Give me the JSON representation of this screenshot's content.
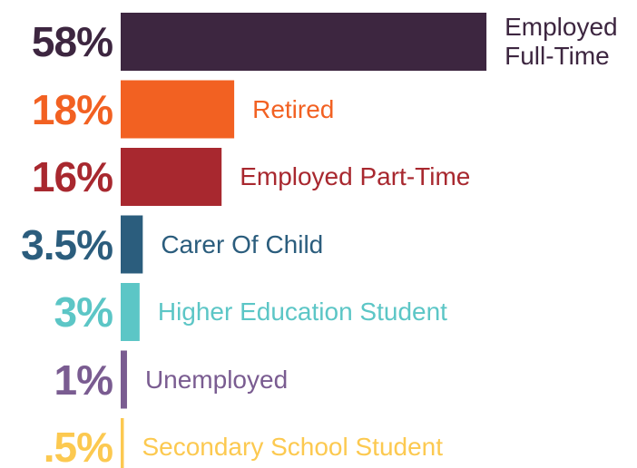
{
  "chart_data": {
    "type": "bar",
    "orientation": "horizontal",
    "categories": [
      "Employed Full-Time",
      "Retired",
      "Employed Part-Time",
      "Carer Of Child",
      "Higher Education Student",
      "Unemployed",
      "Secondary School Student"
    ],
    "values": [
      58,
      18,
      16,
      3.5,
      3,
      1,
      0.5
    ],
    "value_labels": [
      "58%",
      "18%",
      "16%",
      "3.5%",
      "3%",
      "1%",
      ".5%"
    ],
    "colors": [
      "#3d2640",
      "#f26122",
      "#a8282f",
      "#2b5d7d",
      "#5cc6c6",
      "#7a5c91",
      "#fcc950"
    ]
  }
}
